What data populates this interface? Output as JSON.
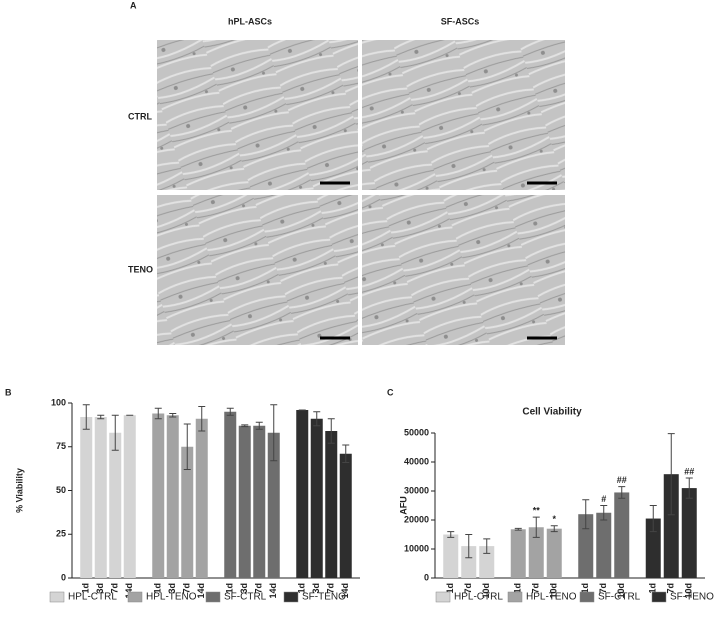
{
  "panel_a": {
    "label": "A",
    "columns": [
      "hPL-ASCs",
      "SF-ASCs"
    ],
    "rows": [
      "CTRL",
      "TENO"
    ]
  },
  "chart_data": [
    {
      "type": "bar",
      "panel_label": "B",
      "y_label": "% Viability",
      "categories": [
        "1d",
        "3d",
        "7d",
        "14d"
      ],
      "ylim": [
        0,
        100
      ],
      "yticks": [
        0,
        25,
        50,
        75,
        100
      ],
      "series": [
        {
          "name": "HPL-CTRL",
          "color": "#d4d4d4",
          "values": [
            92,
            92,
            83,
            93
          ],
          "errors": [
            7,
            1,
            10,
            0
          ]
        },
        {
          "name": "HPL-TENO",
          "color": "#a3a3a3",
          "values": [
            94,
            93,
            75,
            91
          ],
          "errors": [
            3,
            1,
            13,
            7
          ]
        },
        {
          "name": "SF-CTRL",
          "color": "#6e6e6e",
          "values": [
            95,
            87,
            87,
            83
          ],
          "errors": [
            2,
            0.5,
            2,
            16
          ]
        },
        {
          "name": "SF-TENO",
          "color": "#2e2e2e",
          "values": [
            96,
            91,
            84,
            71
          ],
          "errors": [
            0,
            4,
            7,
            5
          ]
        }
      ]
    },
    {
      "type": "bar",
      "panel_label": "C",
      "title": "Cell Viability",
      "y_label": "AFU",
      "categories": [
        "1d",
        "7d",
        "10d"
      ],
      "ylim": [
        0,
        50000
      ],
      "yticks": [
        0,
        10000,
        20000,
        30000,
        40000,
        50000
      ],
      "series": [
        {
          "name": "HPL-CTRL",
          "color": "#d4d4d4",
          "values": [
            15000,
            11000,
            11000
          ],
          "errors": [
            1000,
            4000,
            2500
          ],
          "annotations": [
            null,
            null,
            null
          ]
        },
        {
          "name": "HPL-TENO",
          "color": "#a3a3a3",
          "values": [
            16800,
            17500,
            17000
          ],
          "errors": [
            300,
            3500,
            1000
          ],
          "annotations": [
            null,
            "**",
            "*"
          ]
        },
        {
          "name": "SF-CTRL",
          "color": "#6e6e6e",
          "values": [
            22000,
            22500,
            29500
          ],
          "errors": [
            5000,
            2500,
            2000
          ],
          "annotations": [
            null,
            "#",
            "##"
          ]
        },
        {
          "name": "SF-TENO",
          "color": "#2e2e2e",
          "values": [
            20500,
            35800,
            31000
          ],
          "errors": [
            4500,
            14000,
            3500
          ],
          "annotations": [
            null,
            null,
            "##"
          ]
        }
      ]
    }
  ]
}
